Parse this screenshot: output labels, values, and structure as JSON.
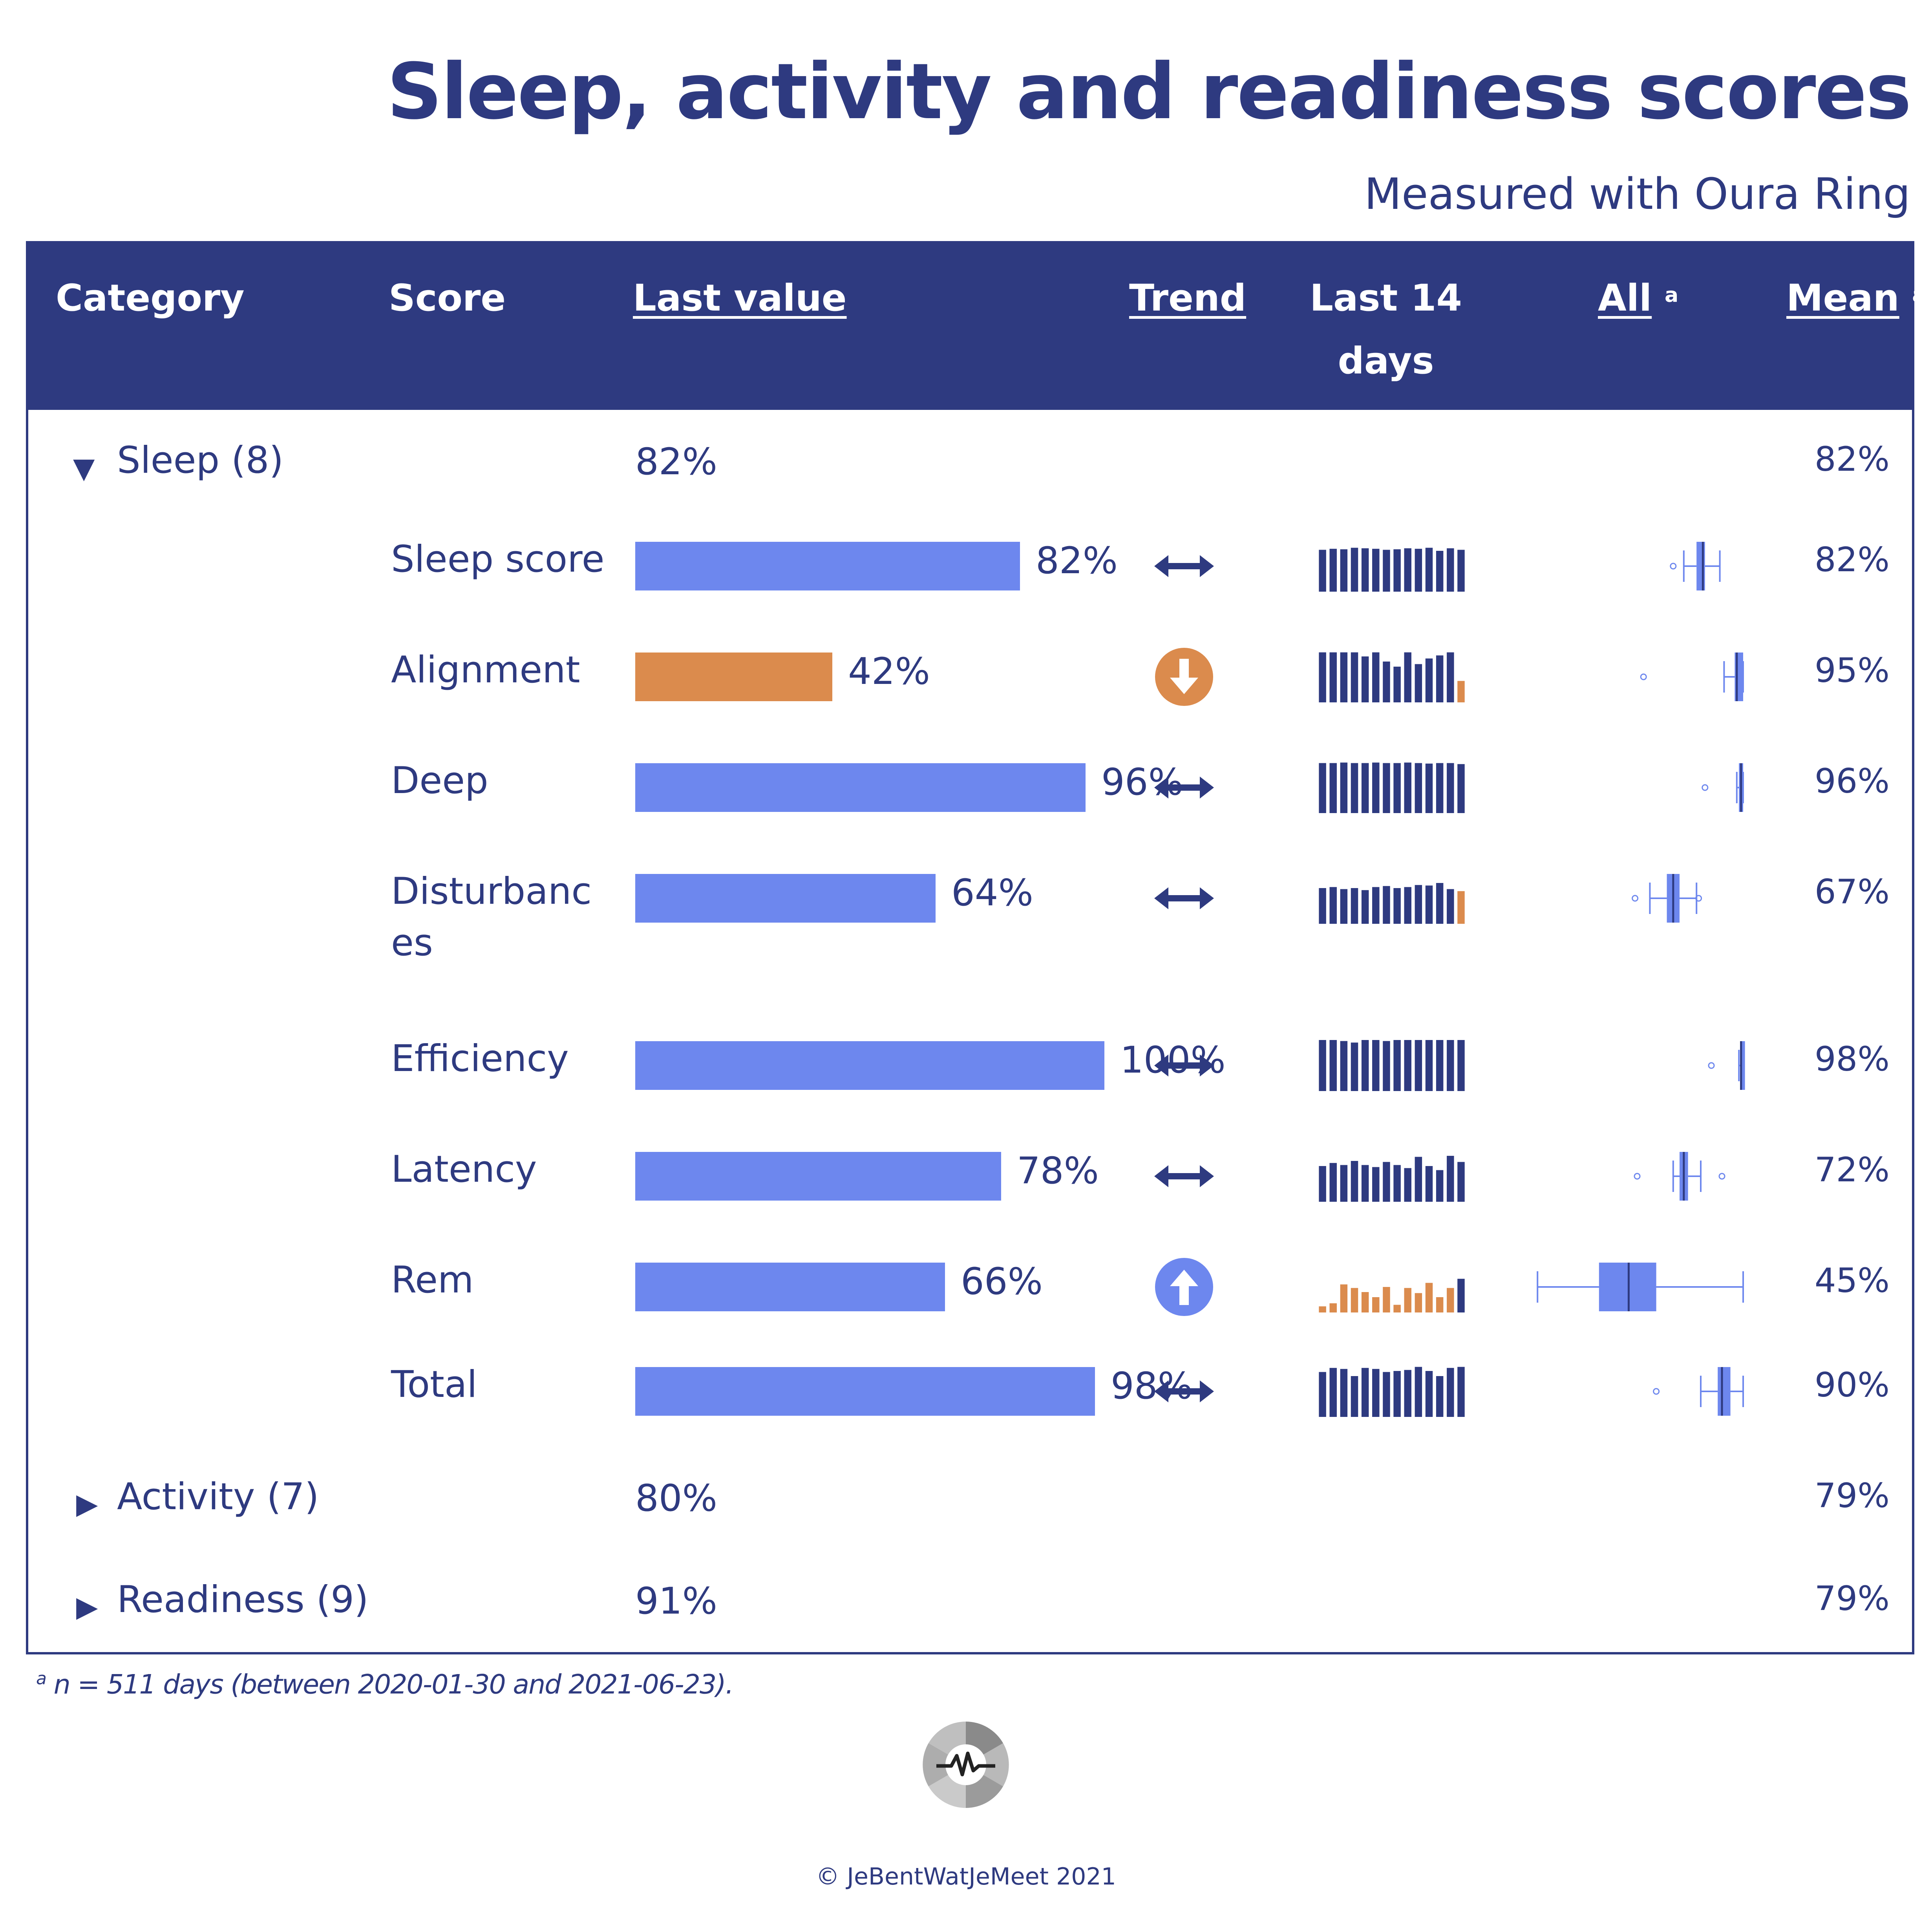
{
  "title": "Sleep, activity and readiness scores",
  "subtitle": "Measured with Oura Ring",
  "header": {
    "category": "Category",
    "score": "Score",
    "last_value": "Last value",
    "trend": "Trend",
    "last14_line1": "Last 14",
    "last14_line2": "days",
    "all": "All",
    "all_sup": "a",
    "mean": "Mean",
    "mean_sup": "a"
  },
  "groups": [
    {
      "label": "Sleep (8)",
      "last_value": "82%",
      "mean": "82%",
      "expanded": true
    },
    {
      "label": "Activity (7)",
      "last_value": "80%",
      "mean": "79%",
      "expanded": false
    },
    {
      "label": "Readiness (9)",
      "last_value": "91%",
      "mean": "79%",
      "expanded": false
    }
  ],
  "footnote": {
    "sup": "a",
    "text": "n = 511 days (between 2020-01-30 and 2021-06-23)."
  },
  "copyright": "© JeBentWatJeMeet 2021",
  "colors": {
    "navy": "#2e3a80",
    "bar_blue": "#6d87ee",
    "bar_orange": "#db8b4d",
    "spark_navy": "#2e3a80",
    "spark_orange": "#db8b4d",
    "logo_gray": "#8a8a8a"
  },
  "chart_data": {
    "type": "table",
    "group": "Sleep",
    "rows": [
      {
        "score": "Sleep score",
        "last_value": 82,
        "last_value_label": "82%",
        "trend": "stable",
        "mean": "82%",
        "last14": [
          82,
          84,
          83,
          86,
          85,
          84,
          82,
          83,
          85,
          84,
          86,
          80,
          85,
          82
        ],
        "last14_status": "normal",
        "box": {
          "min": 72,
          "q1": 78,
          "median": 81,
          "q3": 82,
          "max": 89,
          "outliers": [
            67
          ]
        }
      },
      {
        "score": "Alignment",
        "last_value": 42,
        "last_value_label": "42%",
        "trend": "down",
        "mean": "95%",
        "last14": [
          98,
          98,
          98,
          98,
          90,
          98,
          80,
          70,
          98,
          75,
          86,
          92,
          98,
          42
        ],
        "last14_status": "last-low",
        "box": {
          "min": 91,
          "q1": 96,
          "median": 97,
          "q3": 100,
          "max": 100,
          "outliers": [
            53
          ]
        }
      },
      {
        "score": "Deep",
        "last_value": 96,
        "last_value_label": "96%",
        "trend": "stable",
        "mean": "96%",
        "last14": [
          98,
          98,
          99,
          98,
          98,
          99,
          98,
          98,
          99,
          98,
          97,
          98,
          98,
          96
        ],
        "last14_status": "normal",
        "box": {
          "min": 97,
          "q1": 98,
          "median": 99,
          "q3": 100,
          "max": 100,
          "outliers": [
            82
          ]
        }
      },
      {
        "score": "Disturbances",
        "last_value": 64,
        "last_value_label": "64%",
        "trend": "stable",
        "mean": "67%",
        "last14": [
          70,
          72,
          68,
          70,
          66,
          72,
          74,
          70,
          72,
          76,
          75,
          80,
          68,
          64
        ],
        "last14_status": "last-low",
        "box": {
          "min": 56,
          "q1": 64,
          "median": 67,
          "q3": 70,
          "max": 78,
          "outliers": [
            49,
            79
          ]
        }
      },
      {
        "score": "Efficiency",
        "last_value": 100,
        "last_value_label": "100%",
        "trend": "stable",
        "mean": "98%",
        "last14": [
          100,
          100,
          98,
          95,
          100,
          100,
          98,
          100,
          100,
          100,
          100,
          100,
          100,
          100
        ],
        "last14_status": "normal",
        "box": {
          "min": 98,
          "q1": 99,
          "median": 99,
          "q3": 100,
          "max": 100,
          "outliers": [
            85
          ]
        }
      },
      {
        "score": "Latency",
        "last_value": 78,
        "last_value_label": "78%",
        "trend": "stable",
        "mean": "72%",
        "last14": [
          70,
          76,
          72,
          80,
          72,
          68,
          78,
          72,
          66,
          88,
          70,
          62,
          90,
          78
        ],
        "last14_status": "normal",
        "box": {
          "min": 67,
          "q1": 70,
          "median": 72,
          "q3": 74,
          "max": 80,
          "outliers": [
            50,
            90
          ]
        }
      },
      {
        "score": "Rem",
        "last_value": 66,
        "last_value_label": "66%",
        "trend": "up",
        "mean": "45%",
        "last14": [
          12,
          18,
          55,
          48,
          40,
          30,
          50,
          15,
          48,
          38,
          58,
          30,
          48,
          66
        ],
        "last14_status": "mostly-low",
        "box": {
          "min": 3,
          "q1": 32,
          "median": 46,
          "q3": 59,
          "max": 100,
          "outliers": []
        }
      },
      {
        "score": "Total",
        "last_value": 98,
        "last_value_label": "98%",
        "trend": "stable",
        "mean": "90%",
        "last14": [
          88,
          96,
          94,
          80,
          96,
          94,
          88,
          90,
          92,
          98,
          90,
          80,
          96,
          98
        ],
        "last14_status": "normal",
        "box": {
          "min": 80,
          "q1": 88,
          "median": 90,
          "q3": 94,
          "max": 100,
          "outliers": [
            59
          ]
        }
      }
    ]
  }
}
